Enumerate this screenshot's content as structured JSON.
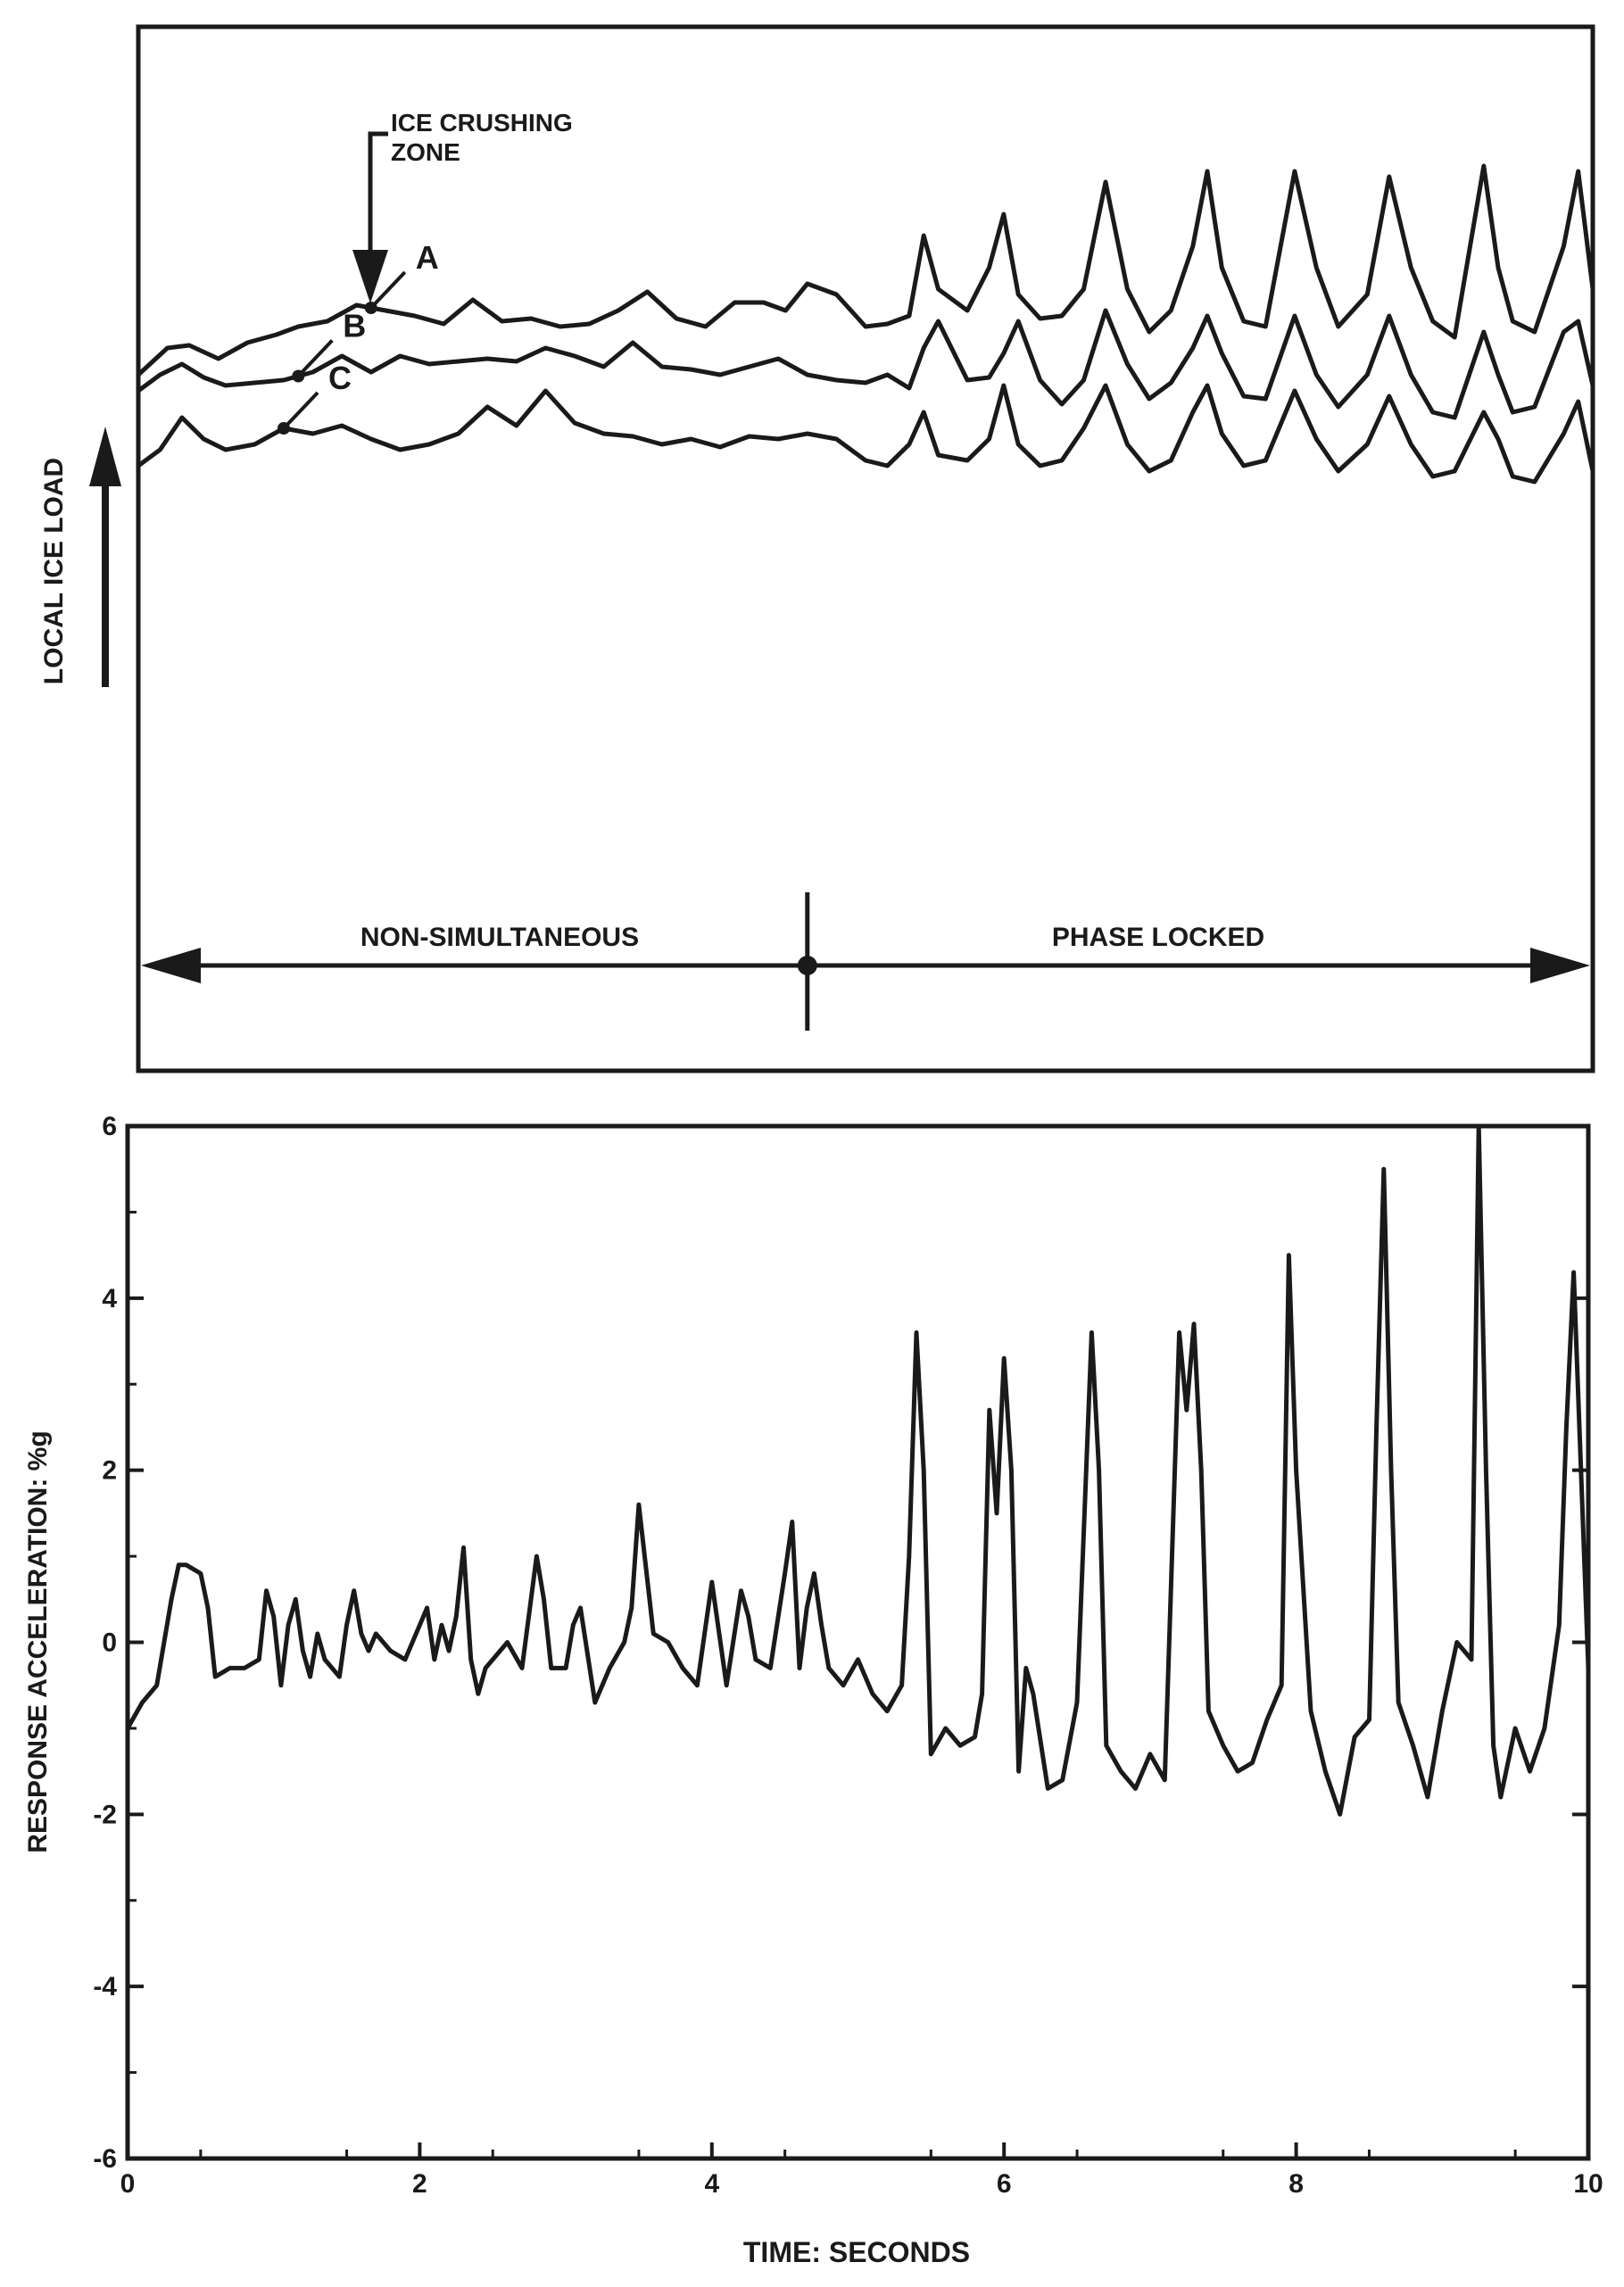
{
  "chart_data": [
    {
      "type": "line",
      "title": "",
      "ylabel": "LOCAL ICE LOAD",
      "xlabel": "",
      "xlim": [
        0,
        10
      ],
      "annotations": {
        "crushing_zone": "ICE CRUSHING\nZONE",
        "region_left": "NON-SIMULTANEOUS",
        "region_right": "PHASE LOCKED",
        "region_boundary_x": 4.6
      },
      "series": [
        {
          "name": "A",
          "x": [
            0,
            0.2,
            0.35,
            0.55,
            0.75,
            0.95,
            1.1,
            1.3,
            1.5,
            1.7,
            1.9,
            2.1,
            2.3,
            2.5,
            2.7,
            2.9,
            3.1,
            3.3,
            3.5,
            3.7,
            3.9,
            4.1,
            4.3,
            4.45,
            4.6,
            4.8,
            5.0,
            5.15,
            5.3,
            5.4,
            5.5,
            5.7,
            5.85,
            5.95,
            6.05,
            6.2,
            6.35,
            6.5,
            6.65,
            6.8,
            6.95,
            7.1,
            7.25,
            7.35,
            7.45,
            7.6,
            7.75,
            7.95,
            8.1,
            8.25,
            8.45,
            8.6,
            8.75,
            8.9,
            9.05,
            9.25,
            9.35,
            9.45,
            9.6,
            9.8,
            9.9,
            10.0
          ],
          "values": [
            6.0,
            6.5,
            6.55,
            6.3,
            6.6,
            6.75,
            6.9,
            7.0,
            7.3,
            7.2,
            7.1,
            6.95,
            7.4,
            7.0,
            7.05,
            6.9,
            6.95,
            7.2,
            7.55,
            7.05,
            6.9,
            7.35,
            7.35,
            7.2,
            7.7,
            7.5,
            6.9,
            6.95,
            7.1,
            8.6,
            7.6,
            7.2,
            8.0,
            9.0,
            7.5,
            7.05,
            7.1,
            7.6,
            9.6,
            7.6,
            6.8,
            7.2,
            8.4,
            9.8,
            8.0,
            7.0,
            6.9,
            9.8,
            8.0,
            6.9,
            7.5,
            9.7,
            8.0,
            7.0,
            6.7,
            9.9,
            8.0,
            7.0,
            6.8,
            8.4,
            9.8,
            7.6
          ]
        },
        {
          "name": "B",
          "x": [
            0,
            0.15,
            0.3,
            0.45,
            0.6,
            0.8,
            1.0,
            1.2,
            1.4,
            1.6,
            1.8,
            2.0,
            2.2,
            2.4,
            2.6,
            2.8,
            3.0,
            3.2,
            3.4,
            3.6,
            3.8,
            4.0,
            4.2,
            4.4,
            4.6,
            4.8,
            5.0,
            5.15,
            5.3,
            5.4,
            5.5,
            5.7,
            5.85,
            5.95,
            6.05,
            6.2,
            6.35,
            6.5,
            6.65,
            6.8,
            6.95,
            7.1,
            7.25,
            7.35,
            7.45,
            7.6,
            7.75,
            7.95,
            8.1,
            8.25,
            8.45,
            8.6,
            8.75,
            8.9,
            9.05,
            9.25,
            9.35,
            9.45,
            9.6,
            9.8,
            9.9,
            10.0
          ],
          "values": [
            5.7,
            6.0,
            6.2,
            5.95,
            5.8,
            5.85,
            5.9,
            6.05,
            6.35,
            6.05,
            6.35,
            6.2,
            6.25,
            6.3,
            6.25,
            6.5,
            6.35,
            6.15,
            6.6,
            6.15,
            6.1,
            6.0,
            6.15,
            6.3,
            6.0,
            5.9,
            5.85,
            6.0,
            5.75,
            6.5,
            7.0,
            5.9,
            5.95,
            6.4,
            7.0,
            5.9,
            5.45,
            5.9,
            7.2,
            6.2,
            5.55,
            5.85,
            6.5,
            7.1,
            6.4,
            5.6,
            5.55,
            7.1,
            6.0,
            5.4,
            6.0,
            7.1,
            6.0,
            5.3,
            5.2,
            6.8,
            6.0,
            5.3,
            5.4,
            6.8,
            7.0,
            5.8
          ]
        },
        {
          "name": "C",
          "x": [
            0,
            0.15,
            0.3,
            0.45,
            0.6,
            0.8,
            1.0,
            1.2,
            1.4,
            1.6,
            1.8,
            2.0,
            2.2,
            2.4,
            2.6,
            2.8,
            3.0,
            3.2,
            3.4,
            3.6,
            3.8,
            4.0,
            4.2,
            4.4,
            4.6,
            4.8,
            5.0,
            5.15,
            5.3,
            5.4,
            5.5,
            5.7,
            5.85,
            5.95,
            6.05,
            6.2,
            6.35,
            6.5,
            6.65,
            6.8,
            6.95,
            7.1,
            7.25,
            7.35,
            7.45,
            7.6,
            7.75,
            7.95,
            8.1,
            8.25,
            8.45,
            8.6,
            8.75,
            8.9,
            9.05,
            9.25,
            9.35,
            9.45,
            9.6,
            9.8,
            9.9,
            10.0
          ],
          "values": [
            4.3,
            4.6,
            5.2,
            4.8,
            4.6,
            4.7,
            5.0,
            4.9,
            5.05,
            4.8,
            4.6,
            4.7,
            4.9,
            5.4,
            5.05,
            5.7,
            5.1,
            4.9,
            4.85,
            4.7,
            4.8,
            4.65,
            4.85,
            4.8,
            4.9,
            4.8,
            4.4,
            4.3,
            4.7,
            5.3,
            4.5,
            4.4,
            4.8,
            5.8,
            4.7,
            4.3,
            4.4,
            5.0,
            5.8,
            4.7,
            4.2,
            4.4,
            5.3,
            5.8,
            4.9,
            4.3,
            4.4,
            5.7,
            4.8,
            4.2,
            4.7,
            5.6,
            4.7,
            4.1,
            4.2,
            5.3,
            4.8,
            4.1,
            4.0,
            4.9,
            5.5,
            4.2
          ]
        }
      ]
    },
    {
      "type": "line",
      "title": "",
      "xlabel": "TIME: SECONDS",
      "ylabel": "RESPONSE ACCELERATION: %g",
      "xlim": [
        0,
        10
      ],
      "ylim": [
        -6,
        6
      ],
      "xticks": [
        0,
        2,
        4,
        6,
        8,
        10
      ],
      "yticks": [
        -6,
        -4,
        -2,
        0,
        2,
        4,
        6
      ],
      "xtick_labels": [
        "0",
        "2",
        "4",
        "6",
        "8",
        "10"
      ],
      "ytick_labels": [
        "-6",
        "-4",
        "-2",
        "0",
        "2",
        "4",
        "6"
      ],
      "series": [
        {
          "x": [
            0,
            0.1,
            0.2,
            0.3,
            0.35,
            0.4,
            0.5,
            0.55,
            0.6,
            0.7,
            0.8,
            0.9,
            0.95,
            1.0,
            1.05,
            1.1,
            1.15,
            1.2,
            1.25,
            1.3,
            1.35,
            1.45,
            1.5,
            1.55,
            1.6,
            1.65,
            1.7,
            1.8,
            1.9,
            2.0,
            2.05,
            2.1,
            2.15,
            2.2,
            2.25,
            2.3,
            2.35,
            2.4,
            2.45,
            2.5,
            2.6,
            2.7,
            2.8,
            2.85,
            2.9,
            3.0,
            3.05,
            3.1,
            3.2,
            3.3,
            3.4,
            3.45,
            3.5,
            3.6,
            3.7,
            3.8,
            3.9,
            4.0,
            4.05,
            4.1,
            4.2,
            4.25,
            4.3,
            4.4,
            4.5,
            4.55,
            4.6,
            4.65,
            4.7,
            4.75,
            4.8,
            4.9,
            5.0,
            5.1,
            5.2,
            5.3,
            5.35,
            5.4,
            5.45,
            5.5,
            5.6,
            5.7,
            5.8,
            5.85,
            5.9,
            5.95,
            6.0,
            6.05,
            6.1,
            6.15,
            6.2,
            6.3,
            6.4,
            6.5,
            6.6,
            6.65,
            6.7,
            6.8,
            6.9,
            7.0,
            7.1,
            7.2,
            7.25,
            7.3,
            7.35,
            7.4,
            7.5,
            7.6,
            7.7,
            7.8,
            7.9,
            7.95,
            8.0,
            8.1,
            8.2,
            8.3,
            8.4,
            8.5,
            8.55,
            8.6,
            8.65,
            8.7,
            8.8,
            8.9,
            9.0,
            9.1,
            9.2,
            9.25,
            9.3,
            9.35,
            9.4,
            9.5,
            9.6,
            9.7,
            9.8,
            9.85,
            9.9,
            9.95,
            10.0
          ],
          "values": [
            -1.0,
            -0.7,
            -0.5,
            0.5,
            0.9,
            0.9,
            0.8,
            0.4,
            -0.4,
            -0.3,
            -0.3,
            -0.2,
            0.6,
            0.3,
            -0.5,
            0.2,
            0.5,
            -0.1,
            -0.4,
            0.1,
            -0.2,
            -0.4,
            0.2,
            0.6,
            0.1,
            -0.1,
            0.1,
            -0.1,
            -0.2,
            0.2,
            0.4,
            -0.2,
            0.2,
            -0.1,
            0.3,
            1.1,
            -0.2,
            -0.6,
            -0.3,
            -0.2,
            0.0,
            -0.3,
            1.0,
            0.5,
            -0.3,
            -0.3,
            0.2,
            0.4,
            -0.7,
            -0.3,
            0.0,
            0.4,
            1.6,
            0.1,
            0.0,
            -0.3,
            -0.5,
            0.7,
            0.1,
            -0.5,
            0.6,
            0.3,
            -0.2,
            -0.3,
            0.8,
            1.4,
            -0.3,
            0.4,
            0.8,
            0.2,
            -0.3,
            -0.5,
            -0.2,
            -0.6,
            -0.8,
            -0.5,
            1.0,
            3.6,
            2.0,
            -1.3,
            -1.0,
            -1.2,
            -1.1,
            -0.6,
            2.7,
            1.5,
            3.3,
            2.0,
            -1.5,
            -0.3,
            -0.6,
            -1.7,
            -1.6,
            -0.7,
            3.6,
            2.0,
            -1.2,
            -1.5,
            -1.7,
            -1.3,
            -1.6,
            3.6,
            2.7,
            3.7,
            2.0,
            -0.8,
            -1.2,
            -1.5,
            -1.4,
            -0.9,
            -0.5,
            4.5,
            2.0,
            -0.8,
            -1.5,
            -2.0,
            -1.1,
            -0.9,
            2.5,
            5.5,
            2.0,
            -0.7,
            -1.2,
            -1.8,
            -0.8,
            0.0,
            -0.2,
            6.0,
            2.0,
            -1.2,
            -1.8,
            -1.0,
            -1.5,
            -1.0,
            0.2,
            2.5,
            4.3,
            2.0,
            -0.3
          ]
        }
      ]
    }
  ]
}
